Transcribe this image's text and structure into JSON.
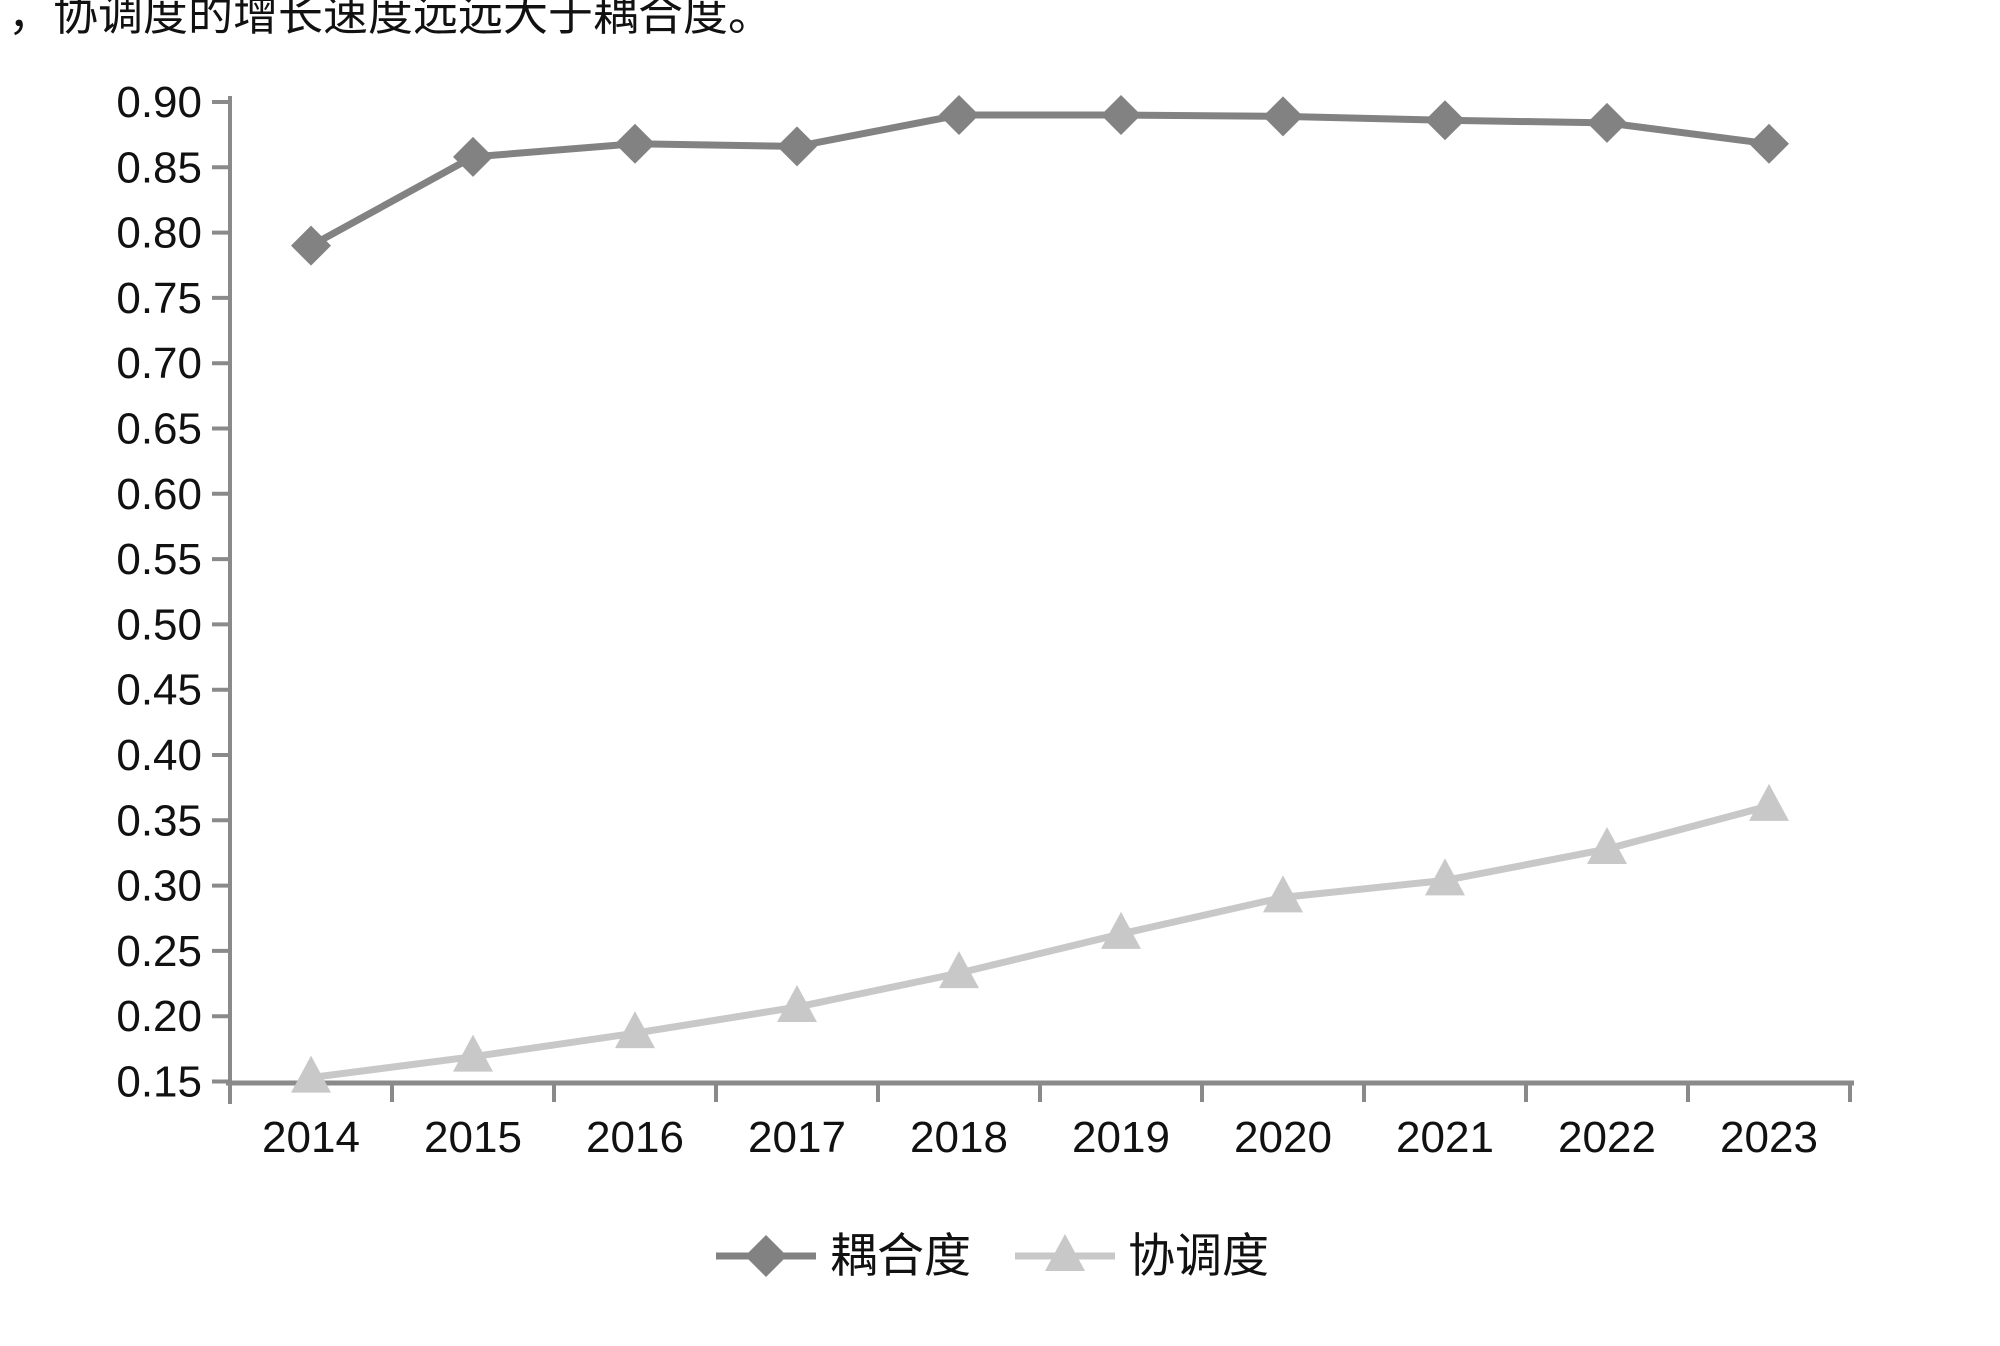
{
  "page": {
    "top_text": "，协调度的增长速度远远大于耦合度。"
  },
  "chart_data": {
    "type": "line",
    "title": "",
    "categories": [
      "2014",
      "2015",
      "2016",
      "2017",
      "2018",
      "2019",
      "2020",
      "2021",
      "2022",
      "2023"
    ],
    "series": [
      {
        "name": "耦合度",
        "marker": "diamond",
        "color": "#828282",
        "values": [
          0.79,
          0.858,
          0.868,
          0.866,
          0.89,
          0.89,
          0.889,
          0.886,
          0.884,
          0.868
        ]
      },
      {
        "name": "协调度",
        "marker": "triangle",
        "color": "#c8c8c8",
        "values": [
          0.153,
          0.169,
          0.187,
          0.207,
          0.233,
          0.263,
          0.291,
          0.304,
          0.328,
          0.361
        ]
      }
    ],
    "ylim": [
      0.15,
      0.9
    ],
    "ytick_step": 0.05,
    "ytick_labels": [
      "0.15",
      "0.20",
      "0.25",
      "0.30",
      "0.35",
      "0.40",
      "0.45",
      "0.50",
      "0.55",
      "0.60",
      "0.65",
      "0.70",
      "0.75",
      "0.80",
      "0.85",
      "0.90"
    ],
    "xlabel": "",
    "ylabel": "",
    "grid": false,
    "legend_position": "bottom",
    "legend_labels": [
      "耦合度",
      "协调度"
    ],
    "axis_color": "#8a8a8a",
    "text_color": "#111111",
    "background_color": "#ffffff"
  }
}
